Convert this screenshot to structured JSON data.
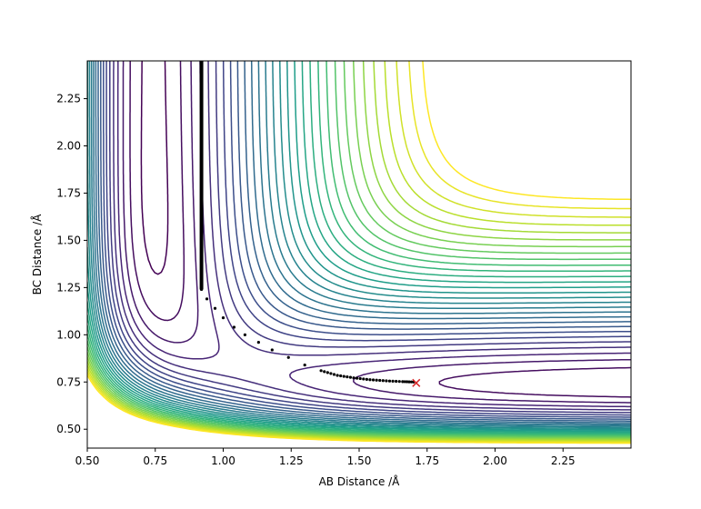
{
  "chart_data": {
    "type": "contour",
    "title": "",
    "xlabel": "AB Distance /Å",
    "ylabel": "BC Distance /Å",
    "xlim": [
      0.5,
      2.5
    ],
    "ylim": [
      0.4,
      2.45
    ],
    "xticks": [
      "0.50",
      "0.75",
      "1.00",
      "1.25",
      "1.50",
      "1.75",
      "2.00",
      "2.25"
    ],
    "xtick_values": [
      0.5,
      0.75,
      1.0,
      1.25,
      1.5,
      1.75,
      2.0,
      2.25
    ],
    "yticks": [
      "0.50",
      "0.75",
      "1.00",
      "1.25",
      "1.50",
      "1.75",
      "2.00",
      "2.25"
    ],
    "ytick_values": [
      0.5,
      0.75,
      1.0,
      1.25,
      1.5,
      1.75,
      2.0,
      2.25
    ],
    "grid": false,
    "colormap": [
      "#440154",
      "#482878",
      "#3e4989",
      "#31688e",
      "#26828e",
      "#1f9e89",
      "#35b779",
      "#6ece58",
      "#b5de2b",
      "#fde725"
    ],
    "contour_levels": 30,
    "saddle_point": {
      "x": 1.4,
      "y": 0.78
    },
    "trajectory": {
      "color": "#000000",
      "segments": [
        {
          "x": [
            0.92,
            0.92
          ],
          "y": [
            2.45,
            1.24
          ]
        },
        {
          "x": [
            0.92,
            0.94,
            0.97,
            1.0,
            1.04,
            1.08,
            1.13,
            1.18,
            1.24,
            1.3,
            1.36,
            1.42,
            1.48,
            1.54,
            1.6,
            1.66,
            1.7
          ],
          "y": [
            1.24,
            1.19,
            1.14,
            1.09,
            1.04,
            1.0,
            0.96,
            0.92,
            0.88,
            0.84,
            0.81,
            0.785,
            0.772,
            0.762,
            0.756,
            0.752,
            0.75
          ]
        }
      ]
    },
    "end_marker": {
      "x": 1.71,
      "y": 0.745,
      "symbol": "x",
      "color": "#d62728"
    }
  }
}
